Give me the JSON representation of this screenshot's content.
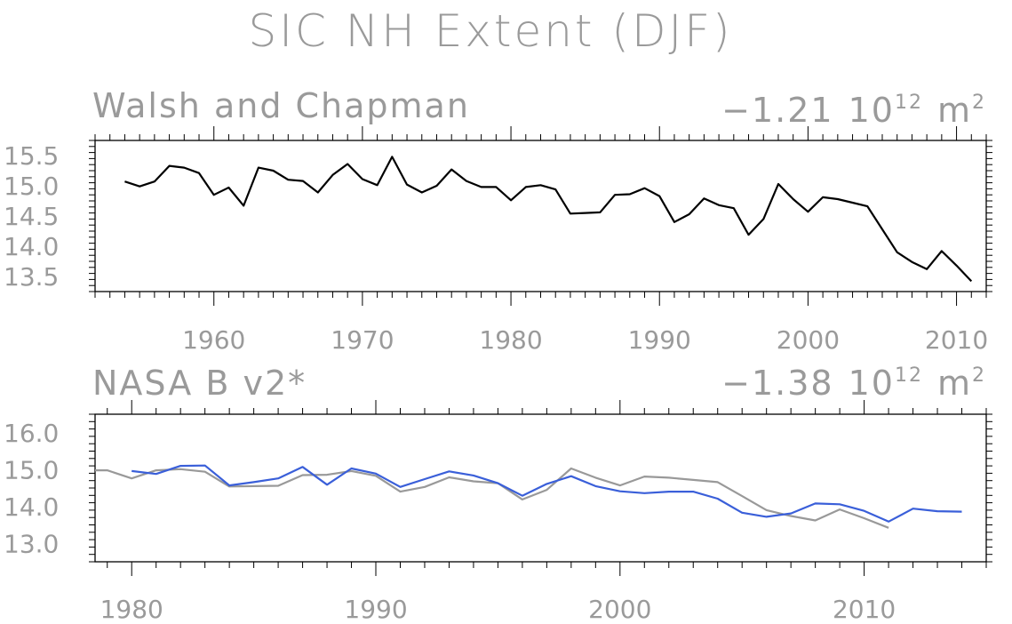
{
  "title": "SIC NH Extent (DJF)",
  "chart_data": [
    {
      "type": "line",
      "title": "Walsh and Chapman",
      "trend_value": "−1.21",
      "trend_unit_base": "10",
      "trend_unit_exp": "12",
      "trend_unit_tail": "m",
      "trend_unit_tail_exp": "2",
      "xlim": [
        1952,
        2012
      ],
      "ylim": [
        13.25,
        15.75
      ],
      "x_ticks": [
        1960,
        1970,
        1980,
        1990,
        2000,
        2010
      ],
      "y_ticks": [
        13.5,
        14.0,
        14.5,
        15.0,
        15.5
      ],
      "y_tick_labels": [
        "13.5",
        "14.0",
        "14.5",
        "15.0",
        "15.5"
      ],
      "grid": false,
      "series": [
        {
          "color": "#000000",
          "x": [
            1954,
            1955,
            1956,
            1957,
            1958,
            1959,
            1960,
            1961,
            1962,
            1963,
            1964,
            1965,
            1966,
            1967,
            1968,
            1969,
            1970,
            1971,
            1972,
            1973,
            1974,
            1975,
            1976,
            1977,
            1978,
            1979,
            1980,
            1981,
            1982,
            1983,
            1984,
            1985,
            1986,
            1987,
            1988,
            1989,
            1990,
            1991,
            1992,
            1993,
            1994,
            1995,
            1996,
            1997,
            1998,
            1999,
            2000,
            2001,
            2002,
            2003,
            2004,
            2005,
            2006,
            2007,
            2008,
            2009,
            2010,
            2011
          ],
          "values": [
            15.07,
            14.99,
            15.07,
            15.33,
            15.3,
            15.21,
            14.85,
            14.97,
            14.67,
            15.3,
            15.25,
            15.1,
            15.08,
            14.89,
            15.18,
            15.36,
            15.11,
            15.01,
            15.48,
            15.02,
            14.89,
            15.0,
            15.27,
            15.08,
            14.98,
            14.98,
            14.76,
            14.98,
            15.01,
            14.94,
            14.54,
            14.55,
            14.56,
            14.85,
            14.86,
            14.96,
            14.83,
            14.4,
            14.53,
            14.79,
            14.68,
            14.63,
            14.19,
            14.45,
            15.03,
            14.78,
            14.57,
            14.81,
            14.78,
            14.72,
            14.66,
            14.28,
            13.9,
            13.74,
            13.62,
            13.92,
            13.68,
            13.42
          ]
        }
      ]
    },
    {
      "type": "line",
      "title": "NASA B v2*",
      "trend_value": "−1.38",
      "trend_unit_base": "10",
      "trend_unit_exp": "12",
      "trend_unit_tail": "m",
      "trend_unit_tail_exp": "2",
      "xlim": [
        1978.5,
        2015
      ],
      "ylim": [
        12.5,
        16.5
      ],
      "x_ticks": [
        1980,
        1990,
        2000,
        2010
      ],
      "y_ticks": [
        13.0,
        14.0,
        15.0,
        16.0
      ],
      "y_tick_labels": [
        "13.0",
        "14.0",
        "15.0",
        "16.0"
      ],
      "grid": false,
      "series": [
        {
          "color": "#999999",
          "x": [
            1978.5,
            1979,
            1980,
            1981,
            1982,
            1983,
            1984,
            1985,
            1986,
            1987,
            1988,
            1989,
            1990,
            1991,
            1992,
            1993,
            1994,
            1995,
            1996,
            1997,
            1998,
            1999,
            2000,
            2001,
            2002,
            2003,
            2004,
            2005,
            2006,
            2007,
            2008,
            2009,
            2010,
            2011
          ],
          "values": [
            14.98,
            14.98,
            14.76,
            14.98,
            15.01,
            14.94,
            14.54,
            14.55,
            14.56,
            14.85,
            14.86,
            14.96,
            14.83,
            14.4,
            14.53,
            14.79,
            14.68,
            14.63,
            14.19,
            14.45,
            15.03,
            14.78,
            14.57,
            14.81,
            14.78,
            14.72,
            14.66,
            14.28,
            13.9,
            13.74,
            13.62,
            13.92,
            13.68,
            13.42
          ]
        },
        {
          "color": "#3a5fd9",
          "x": [
            1980,
            1981,
            1982,
            1983,
            1984,
            1985,
            1986,
            1987,
            1988,
            1989,
            1990,
            1991,
            1992,
            1993,
            1994,
            1995,
            1996,
            1997,
            1998,
            1999,
            2000,
            2001,
            2002,
            2003,
            2004,
            2005,
            2006,
            2007,
            2008,
            2009,
            2010,
            2011,
            2012,
            2013,
            2014
          ],
          "values": [
            14.96,
            14.88,
            15.1,
            15.11,
            14.57,
            14.66,
            14.76,
            15.07,
            14.59,
            15.03,
            14.89,
            14.53,
            14.74,
            14.95,
            14.84,
            14.63,
            14.29,
            14.61,
            14.82,
            14.55,
            14.41,
            14.36,
            14.4,
            14.4,
            14.21,
            13.83,
            13.72,
            13.81,
            14.08,
            14.06,
            13.88,
            13.59,
            13.94,
            13.87,
            13.86
          ]
        }
      ]
    }
  ]
}
